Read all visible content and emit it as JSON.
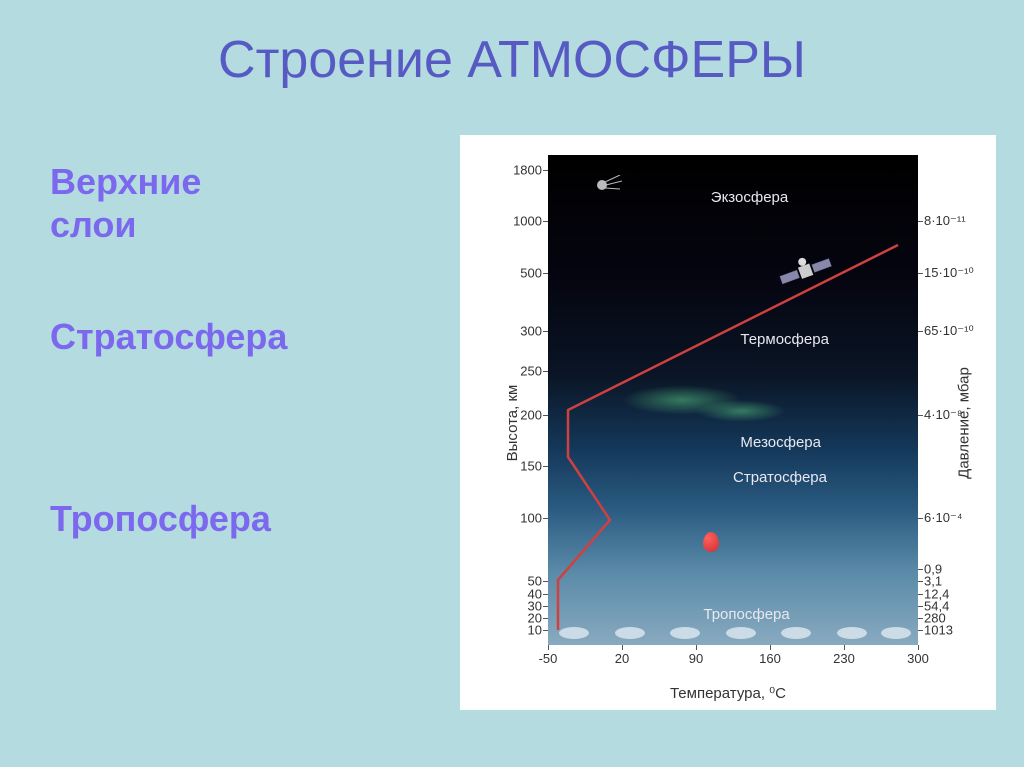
{
  "title": "Строение АТМОСФЕРЫ",
  "side_labels": {
    "upper": "Верхние\nслои",
    "stratosphere": "Стратосфера",
    "troposphere": "Тропосфера"
  },
  "chart": {
    "type": "diagram",
    "y_axis_left": {
      "label": "Высота, км",
      "ticks": [
        10,
        20,
        30,
        40,
        50,
        100,
        150,
        200,
        250,
        300,
        500,
        1000,
        1800
      ]
    },
    "y_axis_right": {
      "label": "Давление, мбар",
      "ticks": [
        "1013",
        "280",
        "54,4",
        "12,4",
        "3,1",
        "0,9",
        "6·10⁻⁴",
        "4·10⁻⁸",
        "65·10⁻¹⁰",
        "15·10⁻¹⁰",
        "8·10⁻¹¹"
      ]
    },
    "x_axis": {
      "label": "Температура, ⁰С",
      "ticks": [
        -50,
        20,
        90,
        160,
        230,
        300
      ]
    },
    "layer_labels": [
      "Экзосфера",
      "Термосфера",
      "Мезосфера",
      "Стратосфера",
      "Тропосфера"
    ],
    "layer_label_positions_pct": [
      7,
      36,
      57,
      64,
      93
    ],
    "left_tick_positions_pct": [
      97,
      94.5,
      92,
      89.5,
      87,
      74,
      63.5,
      53,
      44,
      36,
      24,
      13.5,
      3
    ],
    "right_tick_positions_pct": [
      97,
      94.5,
      92,
      89.5,
      87,
      84.5,
      74,
      53,
      36,
      24,
      13.5
    ],
    "x_tick_positions_pct": [
      0,
      20,
      40,
      60,
      80,
      100
    ],
    "temp_line_points": "10,475 10,425 62,365 20,302 20,255 350,90",
    "colors": {
      "background_page": "#b3dbe0",
      "title_color": "#585ac4",
      "side_label_color": "#7b68ee",
      "temp_line": "#d04040",
      "chart_labels": "#e8e8f0",
      "axis_text": "#333333"
    },
    "gradient_stops": [
      "#000000",
      "#050510",
      "#0a1525",
      "#14385a",
      "#2a5a80",
      "#5a8aa8",
      "#88aac0"
    ]
  }
}
